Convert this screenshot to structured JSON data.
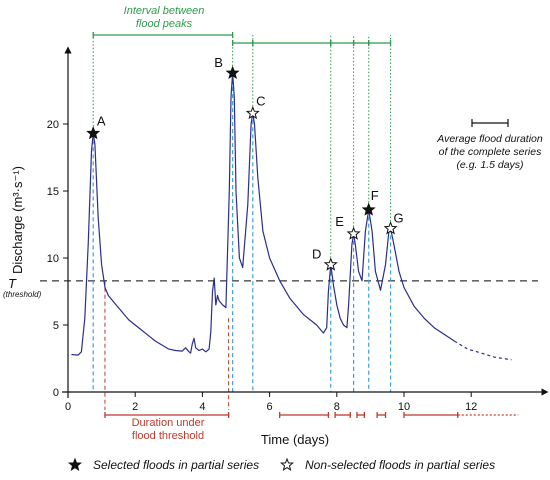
{
  "chart_data": {
    "type": "line",
    "xlabel": "Time (days)",
    "ylabel": "Discharge (m³·s⁻¹)",
    "xlim": [
      0,
      13.5
    ],
    "ylim": [
      0,
      25
    ],
    "xticks": [
      0,
      2,
      4,
      6,
      8,
      10,
      12
    ],
    "yticks": [
      0,
      5,
      10,
      15,
      20
    ],
    "threshold": {
      "value": 8.3,
      "label": "T",
      "sublabel": "(threshold)"
    },
    "series": [
      {
        "solid": [
          [
            0.1,
            2.8
          ],
          [
            0.3,
            2.75
          ],
          [
            0.4,
            3.0
          ],
          [
            0.5,
            5.5
          ],
          [
            0.6,
            11.0
          ],
          [
            0.7,
            18.0
          ],
          [
            0.75,
            19.3
          ],
          [
            0.8,
            18.5
          ],
          [
            0.9,
            13.0
          ],
          [
            1.0,
            9.5
          ],
          [
            1.1,
            7.8
          ],
          [
            1.2,
            7.2
          ],
          [
            1.4,
            6.6
          ],
          [
            1.6,
            6.0
          ],
          [
            1.8,
            5.4
          ],
          [
            2.0,
            5.0
          ],
          [
            2.2,
            4.6
          ],
          [
            2.4,
            4.2
          ],
          [
            2.6,
            3.8
          ],
          [
            2.8,
            3.5
          ],
          [
            3.0,
            3.2
          ],
          [
            3.2,
            3.1
          ],
          [
            3.4,
            3.05
          ],
          [
            3.5,
            3.3
          ],
          [
            3.6,
            3.0
          ],
          [
            3.65,
            2.9
          ],
          [
            3.7,
            3.6
          ],
          [
            3.75,
            4.0
          ],
          [
            3.8,
            3.3
          ],
          [
            3.9,
            3.1
          ],
          [
            4.0,
            3.2
          ],
          [
            4.1,
            3.0
          ],
          [
            4.2,
            3.2
          ],
          [
            4.25,
            4.5
          ],
          [
            4.3,
            7.5
          ],
          [
            4.35,
            8.5
          ],
          [
            4.4,
            6.5
          ],
          [
            4.45,
            7.2
          ],
          [
            4.5,
            6.8
          ],
          [
            4.6,
            6.5
          ],
          [
            4.7,
            6.3
          ],
          [
            4.8,
            15.0
          ],
          [
            4.85,
            22.0
          ],
          [
            4.9,
            23.8
          ],
          [
            4.95,
            22.0
          ],
          [
            5.0,
            15.0
          ],
          [
            5.1,
            10.0
          ],
          [
            5.2,
            9.3
          ],
          [
            5.35,
            14.0
          ],
          [
            5.45,
            20.0
          ],
          [
            5.5,
            20.8
          ],
          [
            5.55,
            20.0
          ],
          [
            5.65,
            16.0
          ],
          [
            5.8,
            12.0
          ],
          [
            6.0,
            10.0
          ],
          [
            6.3,
            8.3
          ],
          [
            6.6,
            7.0
          ],
          [
            7.0,
            5.8
          ],
          [
            7.4,
            5.0
          ],
          [
            7.6,
            4.4
          ],
          [
            7.7,
            4.8
          ],
          [
            7.75,
            7.5
          ],
          [
            7.82,
            9.5
          ],
          [
            7.9,
            8.0
          ],
          [
            8.0,
            6.5
          ],
          [
            8.1,
            5.5
          ],
          [
            8.2,
            5.0
          ],
          [
            8.3,
            4.8
          ],
          [
            8.35,
            6.5
          ],
          [
            8.45,
            11.0
          ],
          [
            8.5,
            11.8
          ],
          [
            8.55,
            11.0
          ],
          [
            8.65,
            9.0
          ],
          [
            8.75,
            8.3
          ],
          [
            8.85,
            12.0
          ],
          [
            8.95,
            13.6
          ],
          [
            9.05,
            12.0
          ],
          [
            9.15,
            9.0
          ],
          [
            9.3,
            7.6
          ],
          [
            9.45,
            9.5
          ],
          [
            9.55,
            12.0
          ],
          [
            9.6,
            12.2
          ],
          [
            9.7,
            11.0
          ],
          [
            9.85,
            9.0
          ],
          [
            10.0,
            7.8
          ],
          [
            10.3,
            6.4
          ],
          [
            10.6,
            5.5
          ],
          [
            10.9,
            4.8
          ],
          [
            11.2,
            4.3
          ],
          [
            11.5,
            3.8
          ]
        ],
        "dashed_extension": [
          [
            11.5,
            3.8
          ],
          [
            11.9,
            3.2
          ],
          [
            12.3,
            2.9
          ],
          [
            12.7,
            2.6
          ],
          [
            13.2,
            2.4
          ]
        ]
      }
    ],
    "peaks": [
      {
        "label": "A",
        "x": 0.75,
        "y": 19.3,
        "selected": true
      },
      {
        "label": "B",
        "x": 4.9,
        "y": 23.8,
        "selected": true
      },
      {
        "label": "C",
        "x": 5.5,
        "y": 20.8,
        "selected": false
      },
      {
        "label": "D",
        "x": 7.82,
        "y": 9.5,
        "selected": false
      },
      {
        "label": "E",
        "x": 8.5,
        "y": 11.8,
        "selected": false
      },
      {
        "label": "F",
        "x": 8.95,
        "y": 13.6,
        "selected": true
      },
      {
        "label": "G",
        "x": 9.6,
        "y": 12.2,
        "selected": false
      }
    ],
    "intervals_between_peaks": [
      [
        0.75,
        4.9
      ],
      [
        4.9,
        5.5
      ],
      [
        5.5,
        7.82
      ],
      [
        7.82,
        8.5
      ],
      [
        8.5,
        8.95
      ],
      [
        8.95,
        9.6
      ]
    ],
    "durations_under_threshold": [
      [
        1.1,
        4.78
      ],
      [
        6.3,
        7.75
      ],
      [
        7.95,
        8.4
      ],
      [
        8.6,
        8.82
      ],
      [
        9.2,
        9.45
      ],
      [
        10.0,
        11.6
      ]
    ],
    "duration_dotted_extension": [
      11.6,
      13.4
    ],
    "average_duration_scale": 1.5
  },
  "annotations": {
    "interval_title": [
      "Interval between",
      "flood peaks"
    ],
    "duration_title": [
      "Duration under",
      "flood threshold"
    ],
    "average_title": [
      "Average flood duration",
      "of the complete series",
      "(e.g. 1.5 days)"
    ]
  },
  "legend": {
    "selected": "Selected floods in partial series",
    "non_selected": "Non-selected floods in partial series"
  },
  "colors": {
    "line": "#2b2d8f",
    "green": "#2e9a4e",
    "red": "#c0392b",
    "blue_dashed": "#3aa0dc",
    "threshold": "#666666"
  }
}
